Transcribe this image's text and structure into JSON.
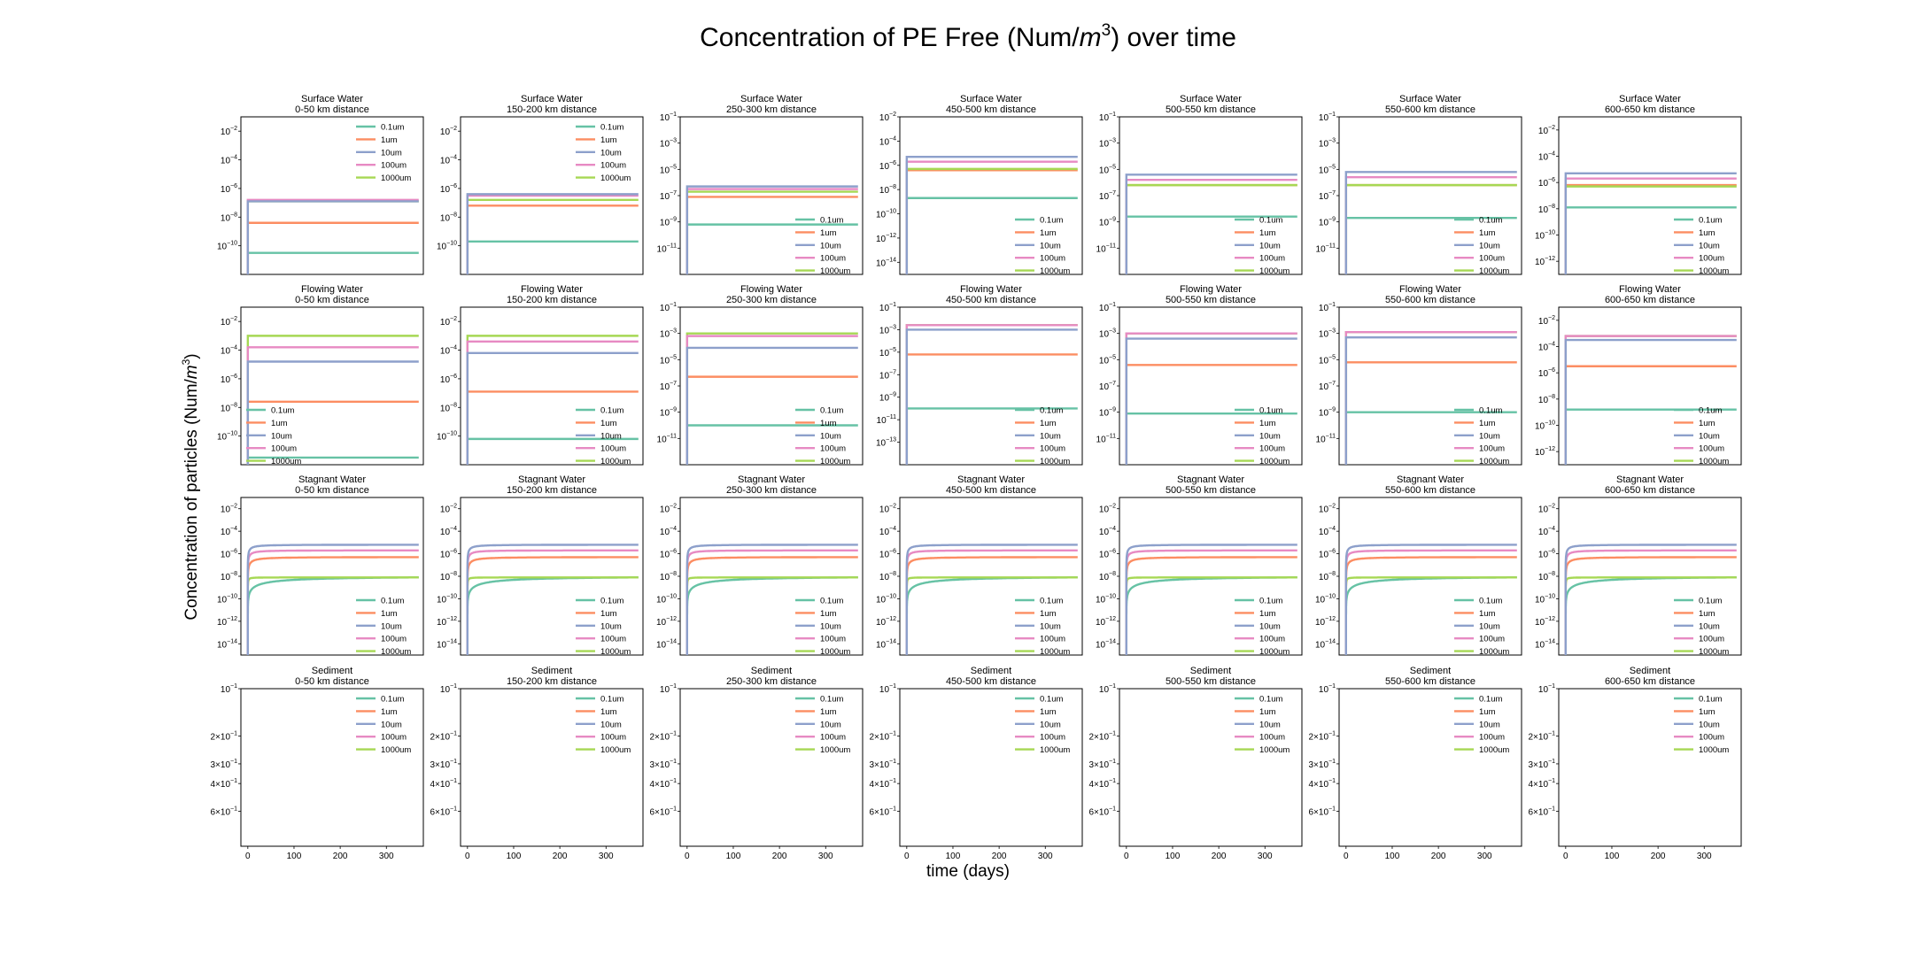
{
  "figure": {
    "title": "Concentration of PE Free (Num/",
    "title_unit_symbol": "m",
    "title_unit_exp": "3",
    "title_suffix": ") over time",
    "ylabel": "Concentration of particles (Num/",
    "ylabel_unit_symbol": "m",
    "ylabel_unit_exp": "3",
    "ylabel_suffix": ")",
    "xlabel": "time (days)"
  },
  "chart_data": {
    "type": "line",
    "rows": [
      "Surface Water",
      "Flowing Water",
      "Stagnant Water",
      "Sediment"
    ],
    "columns": [
      "0-50 km distance",
      "150-200 km distance",
      "250-300 km distance",
      "450-500 km distance",
      "500-550 km distance",
      "550-600 km distance",
      "600-650 km distance"
    ],
    "x_ticks": [
      0,
      100,
      200,
      300
    ],
    "x_range": [
      -15,
      380
    ],
    "y_scale": "log",
    "legend": [
      "0.1um",
      "1um",
      "10um",
      "100um",
      "1000um"
    ],
    "colors": [
      "#66c2a5",
      "#fc8d62",
      "#8da0cb",
      "#e78ac3",
      "#a6d854"
    ],
    "legend_positions": [
      [
        "upper-right",
        "upper-right",
        "lower-right",
        "lower-right",
        "lower-right",
        "lower-right",
        "lower-right"
      ],
      [
        "lower-left",
        "lower-right",
        "lower-right",
        "lower-right",
        "lower-right",
        "lower-right",
        "lower-right"
      ],
      [
        "lower-right",
        "lower-right",
        "lower-right",
        "lower-right",
        "lower-right",
        "lower-right",
        "lower-right"
      ],
      [
        "upper-right",
        "upper-right",
        "upper-right",
        "upper-right",
        "upper-right",
        "upper-right",
        "upper-right"
      ]
    ],
    "panels": [
      [
        {
          "ylim_exp": [
            -12,
            -1
          ],
          "ytick_exp": [
            -10,
            -8,
            -6,
            -4,
            -2
          ],
          "levels_exp": [
            -10.5,
            -8.4,
            -6.9,
            -6.8,
            -6.9
          ]
        },
        {
          "ylim_exp": [
            -12,
            -1
          ],
          "ytick_exp": [
            -10,
            -8,
            -6,
            -4,
            -2
          ],
          "levels_exp": [
            -9.7,
            -7.2,
            -6.4,
            -6.5,
            -6.8
          ]
        },
        {
          "ylim_exp": [
            -13,
            -1
          ],
          "ytick_exp": [
            -11,
            -9,
            -7,
            -5,
            -3,
            -1
          ],
          "levels_exp": [
            -9.2,
            -7.1,
            -6.3,
            -6.5,
            -6.7
          ]
        },
        {
          "ylim_exp": [
            -15,
            -2
          ],
          "ytick_exp": [
            -14,
            -12,
            -10,
            -8,
            -6,
            -4,
            -2
          ],
          "levels_exp": [
            -8.7,
            -6.4,
            -5.3,
            -5.7,
            -6.3
          ]
        },
        {
          "ylim_exp": [
            -13,
            -1
          ],
          "ytick_exp": [
            -11,
            -9,
            -7,
            -5,
            -3,
            -1
          ],
          "levels_exp": [
            -8.6,
            -6.2,
            -5.4,
            -5.8,
            -6.2
          ]
        },
        {
          "ylim_exp": [
            -13,
            -1
          ],
          "ytick_exp": [
            -11,
            -9,
            -7,
            -5,
            -3,
            -1
          ],
          "levels_exp": [
            -8.7,
            -6.2,
            -5.2,
            -5.6,
            -6.2
          ]
        },
        {
          "ylim_exp": [
            -13,
            -1
          ],
          "ytick_exp": [
            -12,
            -10,
            -8,
            -6,
            -4,
            -2
          ],
          "levels_exp": [
            -7.9,
            -6.2,
            -5.3,
            -5.7,
            -6.3
          ]
        }
      ],
      [
        {
          "ylim_exp": [
            -12,
            -1
          ],
          "ytick_exp": [
            -10,
            -8,
            -6,
            -4,
            -2
          ],
          "levels_exp": [
            -11.5,
            -7.6,
            -4.8,
            -3.8,
            -3.0
          ]
        },
        {
          "ylim_exp": [
            -12,
            -1
          ],
          "ytick_exp": [
            -10,
            -8,
            -6,
            -4,
            -2
          ],
          "levels_exp": [
            -10.2,
            -6.9,
            -4.2,
            -3.4,
            -3.0
          ]
        },
        {
          "ylim_exp": [
            -13,
            -1
          ],
          "ytick_exp": [
            -11,
            -9,
            -7,
            -5,
            -3,
            -1
          ],
          "levels_exp": [
            -10.0,
            -6.3,
            -4.1,
            -3.2,
            -3.0
          ]
        },
        {
          "ylim_exp": [
            -15,
            -1
          ],
          "ytick_exp": [
            -13,
            -11,
            -9,
            -7,
            -5,
            -3,
            -1
          ],
          "levels_exp": [
            -10.0,
            -5.2,
            -3.0,
            -2.6,
            -2.6
          ]
        },
        {
          "ylim_exp": [
            -13,
            -1
          ],
          "ytick_exp": [
            -11,
            -9,
            -7,
            -5,
            -3,
            -1
          ],
          "levels_exp": [
            -9.1,
            -5.4,
            -3.4,
            -3.0,
            -3.0
          ]
        },
        {
          "ylim_exp": [
            -13,
            -1
          ],
          "ytick_exp": [
            -11,
            -9,
            -7,
            -5,
            -3,
            -1
          ],
          "levels_exp": [
            -9.0,
            -5.2,
            -3.3,
            -2.9,
            -2.9
          ]
        },
        {
          "ylim_exp": [
            -13,
            -1
          ],
          "ytick_exp": [
            -12,
            -10,
            -8,
            -6,
            -4,
            -2
          ],
          "levels_exp": [
            -8.8,
            -5.5,
            -3.5,
            -3.2,
            -3.2
          ]
        }
      ],
      [
        {
          "ylim_exp": [
            -15,
            -1
          ],
          "ytick_exp": [
            -14,
            -12,
            -10,
            -8,
            -6,
            -4,
            -2
          ]
        },
        {
          "ylim_exp": [
            -15,
            -1
          ],
          "ytick_exp": [
            -14,
            -12,
            -10,
            -8,
            -6,
            -4,
            -2
          ]
        },
        {
          "ylim_exp": [
            -15,
            -1
          ],
          "ytick_exp": [
            -14,
            -12,
            -10,
            -8,
            -6,
            -4,
            -2
          ]
        },
        {
          "ylim_exp": [
            -15,
            -1
          ],
          "ytick_exp": [
            -14,
            -12,
            -10,
            -8,
            -6,
            -4,
            -2
          ]
        },
        {
          "ylim_exp": [
            -15,
            -1
          ],
          "ytick_exp": [
            -14,
            -12,
            -10,
            -8,
            -6,
            -4,
            -2
          ]
        },
        {
          "ylim_exp": [
            -15,
            -1
          ],
          "ytick_exp": [
            -14,
            -12,
            -10,
            -8,
            -6,
            -4,
            -2
          ]
        },
        {
          "ylim_exp": [
            -15,
            -1
          ],
          "ytick_exp": [
            -14,
            -12,
            -10,
            -8,
            -6,
            -4,
            -2
          ]
        }
      ],
      [
        {
          "ylim": [
            0.1,
            1.0
          ],
          "yticks": [
            0.1,
            0.2,
            0.3,
            0.4,
            0.6
          ]
        },
        {
          "ylim": [
            0.1,
            1.0
          ],
          "yticks": [
            0.1,
            0.2,
            0.3,
            0.4,
            0.6
          ]
        },
        {
          "ylim": [
            0.1,
            1.0
          ],
          "yticks": [
            0.1,
            0.2,
            0.3,
            0.4,
            0.6
          ]
        },
        {
          "ylim": [
            0.1,
            1.0
          ],
          "yticks": [
            0.1,
            0.2,
            0.3,
            0.4,
            0.6
          ]
        },
        {
          "ylim": [
            0.1,
            1.0
          ],
          "yticks": [
            0.1,
            0.2,
            0.3,
            0.4,
            0.6
          ]
        },
        {
          "ylim": [
            0.1,
            1.0
          ],
          "yticks": [
            0.1,
            0.2,
            0.3,
            0.4,
            0.6
          ]
        },
        {
          "ylim": [
            0.1,
            1.0
          ],
          "yticks": [
            0.1,
            0.2,
            0.3,
            0.4,
            0.6
          ]
        }
      ]
    ],
    "stagnant_water_final_exp": [
      -8.1,
      -6.3,
      -5.2,
      -5.7,
      -8.1
    ],
    "stagnant_water_rate_days": [
      120,
      14,
      8,
      8,
      1.2
    ],
    "sediment_ytick_labels": [
      "10^-1",
      "2 × 10^-1",
      "3 × 10^-1",
      "4 × 10^-1",
      "6 × 10^-1"
    ]
  }
}
